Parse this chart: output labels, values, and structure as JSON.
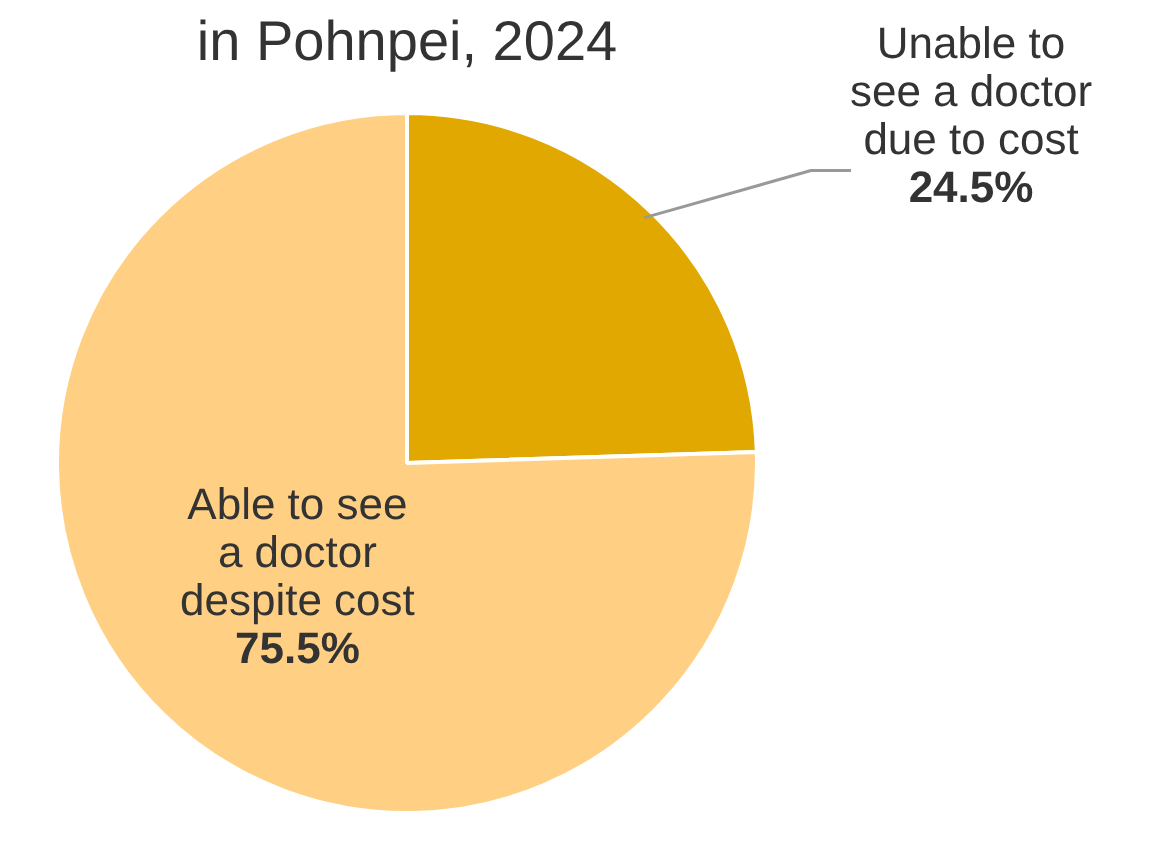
{
  "chart_data": {
    "type": "pie",
    "title": "in Pohnpei, 2024",
    "categories": [
      "Unable to\nsee a doctor\ndue to cost",
      "Able to see\na doctor\ndespite cost"
    ],
    "values": [
      24.5,
      75.5
    ],
    "value_labels": [
      "24.5%",
      "75.5%"
    ],
    "colors": [
      "#e0a800",
      "#ffd084"
    ]
  }
}
